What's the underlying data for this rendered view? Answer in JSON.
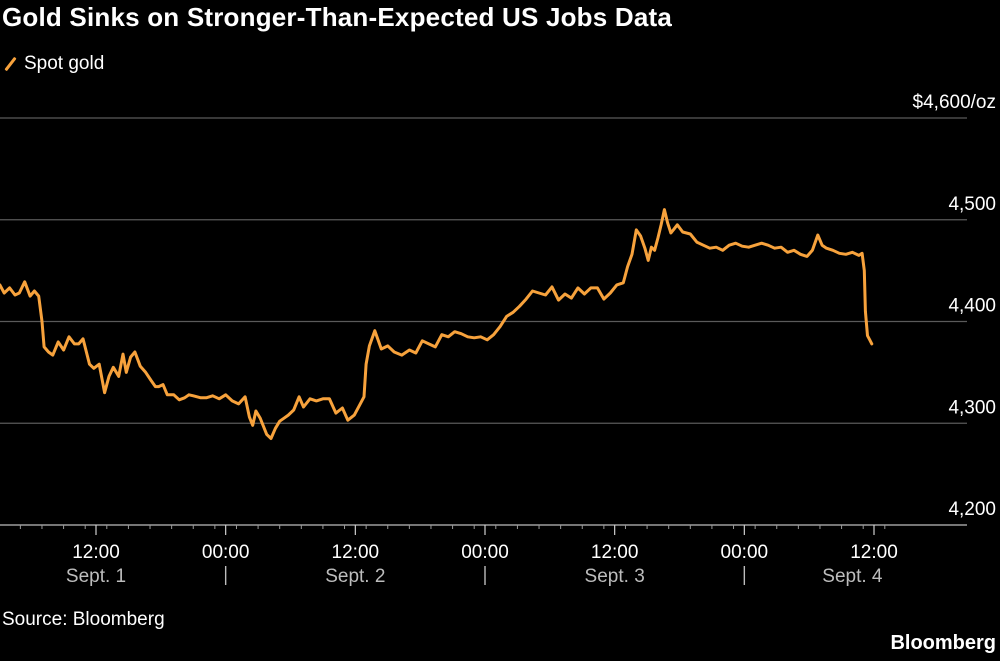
{
  "title": "Gold Sinks on Stronger-Than-Expected US Jobs Data",
  "source": "Source: Bloomberg",
  "brand": "Bloomberg",
  "colors": {
    "line": "#F7A23C",
    "grid": "#5a5a5a",
    "background": "#000000"
  },
  "chart_data": {
    "type": "line",
    "title": "Gold Sinks on Stronger-Than-Expected US Jobs Data",
    "ylabel": "",
    "xlabel": "",
    "ylim": [
      4200,
      4600
    ],
    "y_ticks": [
      4200,
      4300,
      4400,
      4500,
      4600
    ],
    "y_tick_labels": [
      "4,200",
      "4,300",
      "4,400",
      "4,500",
      "$4,600/oz"
    ],
    "y_axis_side": "right",
    "grid": true,
    "legend": "top-left",
    "x_unit": "hours since Sept. 1 00:00",
    "xlim": [
      2.3,
      85.0
    ],
    "x_ticks": [
      12,
      24,
      36,
      48,
      60,
      72,
      84
    ],
    "x_tick_labels": [
      "12:00",
      "00:00",
      "12:00",
      "00:00",
      "12:00",
      "00:00",
      "12:00"
    ],
    "day_labels": [
      {
        "label": "Sept. 1",
        "x": 12
      },
      {
        "label": "Sept. 2",
        "x": 36
      },
      {
        "label": "Sept. 3",
        "x": 60
      },
      {
        "label": "Sept. 4",
        "x": 82
      }
    ],
    "day_separators": [
      24,
      48,
      72
    ],
    "series": [
      {
        "name": "Spot gold",
        "x": [
          2.3,
          2.7,
          3.1,
          3.5,
          4.0,
          4.5,
          4.9,
          5.4,
          5.9,
          6.3,
          6.7,
          7.0,
          7.2,
          7.6,
          8.0,
          8.5,
          9.0,
          9.5,
          10.0,
          10.4,
          10.8,
          11.4,
          11.8,
          12.3,
          12.8,
          13.2,
          13.6,
          14.1,
          14.5,
          14.8,
          15.2,
          15.6,
          16.1,
          16.6,
          17.1,
          17.5,
          17.8,
          18.2,
          18.6,
          19.2,
          19.7,
          20.2,
          20.6,
          21.0,
          21.7,
          22.2,
          22.8,
          23.4,
          24.0,
          24.6,
          25.2,
          25.8,
          26.2,
          26.5,
          26.8,
          27.2,
          27.8,
          28.2,
          28.6,
          29.0,
          29.4,
          29.8,
          30.3,
          30.8,
          31.2,
          31.8,
          32.4,
          33.0,
          33.6,
          34.2,
          34.8,
          35.3,
          35.9,
          36.4,
          36.8,
          37.0,
          37.3,
          37.8,
          38.4,
          39.0,
          39.6,
          40.3,
          41.0,
          41.6,
          42.2,
          42.8,
          43.4,
          44.0,
          44.6,
          45.2,
          45.8,
          46.4,
          47.0,
          47.6,
          48.2,
          48.8,
          49.4,
          50.0,
          50.6,
          51.2,
          51.8,
          52.4,
          53.0,
          53.6,
          54.2,
          54.8,
          55.4,
          56.0,
          56.6,
          57.2,
          57.8,
          58.4,
          59.0,
          59.6,
          60.2,
          60.8,
          61.2,
          61.6,
          62.0,
          62.4,
          62.8,
          63.1,
          63.4,
          63.7,
          64.0,
          64.3,
          64.6,
          64.9,
          65.2,
          65.5,
          65.8,
          66.3,
          67.0,
          67.6,
          68.2,
          68.8,
          69.4,
          70.0,
          70.6,
          71.2,
          71.8,
          72.4,
          73.0,
          73.6,
          74.2,
          74.8,
          75.4,
          76.0,
          76.6,
          77.2,
          77.8,
          78.3,
          78.8,
          79.2,
          79.6,
          80.2,
          80.8,
          81.4,
          82.0,
          82.6,
          82.9,
          83.1,
          83.2,
          83.4,
          83.6,
          83.8
        ],
        "values": [
          4438,
          4432,
          4436,
          4428,
          4433,
          4426,
          4428,
          4439,
          4425,
          4430,
          4425,
          4400,
          4375,
          4370,
          4367,
          4380,
          4372,
          4385,
          4378,
          4378,
          4383,
          4358,
          4354,
          4358,
          4330,
          4346,
          4355,
          4346,
          4368,
          4350,
          4365,
          4370,
          4356,
          4350,
          4342,
          4336,
          4336,
          4338,
          4328,
          4328,
          4323,
          4325,
          4328,
          4327,
          4325,
          4325,
          4327,
          4324,
          4328,
          4322,
          4319,
          4326,
          4306,
          4298,
          4312,
          4305,
          4289,
          4285,
          4295,
          4302,
          4305,
          4308,
          4313,
          4326,
          4316,
          4324,
          4322,
          4324,
          4324,
          4310,
          4315,
          4303,
          4308,
          4318,
          4326,
          4358,
          4376,
          4391,
          4373,
          4376,
          4370,
          4367,
          4372,
          4369,
          4381,
          4378,
          4375,
          4387,
          4385,
          4390,
          4388,
          4385,
          4384,
          4385,
          4382,
          4387,
          4395,
          4405,
          4409,
          4415,
          4422,
          4430,
          4428,
          4426,
          4434,
          4421,
          4427,
          4423,
          4433,
          4427,
          4433,
          4433,
          4422,
          4428,
          4436,
          4438,
          4454,
          4466,
          4490,
          4484,
          4472,
          4460,
          4473,
          4470,
          4482,
          4495,
          4510,
          4497,
          4487,
          4491,
          4495,
          4488,
          4486,
          4478,
          4475,
          4472,
          4473,
          4470,
          4475,
          4477,
          4474,
          4473,
          4475,
          4477,
          4475,
          4472,
          4473,
          4468,
          4470,
          4466,
          4464,
          4470,
          4485,
          4475,
          4472,
          4470,
          4467,
          4466,
          4468,
          4465,
          4467,
          4450,
          4410,
          4386,
          4382,
          4378
        ]
      }
    ]
  }
}
